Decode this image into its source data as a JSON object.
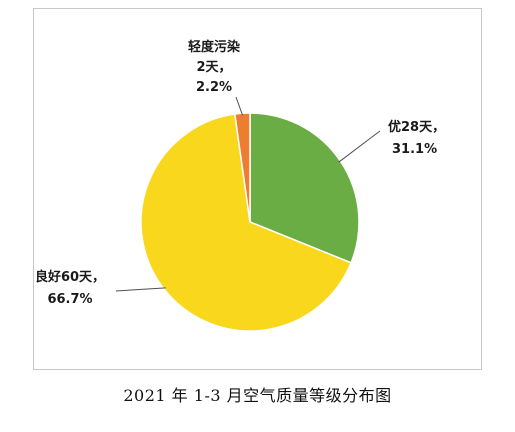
{
  "chart_data": {
    "type": "pie",
    "caption": "2021 年 1-3 月空气质量等级分布图",
    "slices": [
      {
        "label": "优",
        "days_label": "28天，",
        "percent_label": "31.1%",
        "value": 28,
        "percent": 31.1,
        "color": "#6aad45"
      },
      {
        "label": "良好",
        "days_label": "60天，",
        "percent_label": "66.7%",
        "value": 60,
        "percent": 66.7,
        "color": "#f9d71c"
      },
      {
        "label": "轻度污染",
        "days_label": "2天，",
        "percent_label": "2.2%",
        "value": 2,
        "percent": 2.2,
        "color": "#ed7d31"
      }
    ],
    "start_angle_deg": 0,
    "direction": "clockwise",
    "slice_border_color": "#ffffff",
    "leader_line_color": "#4d4d4d"
  }
}
